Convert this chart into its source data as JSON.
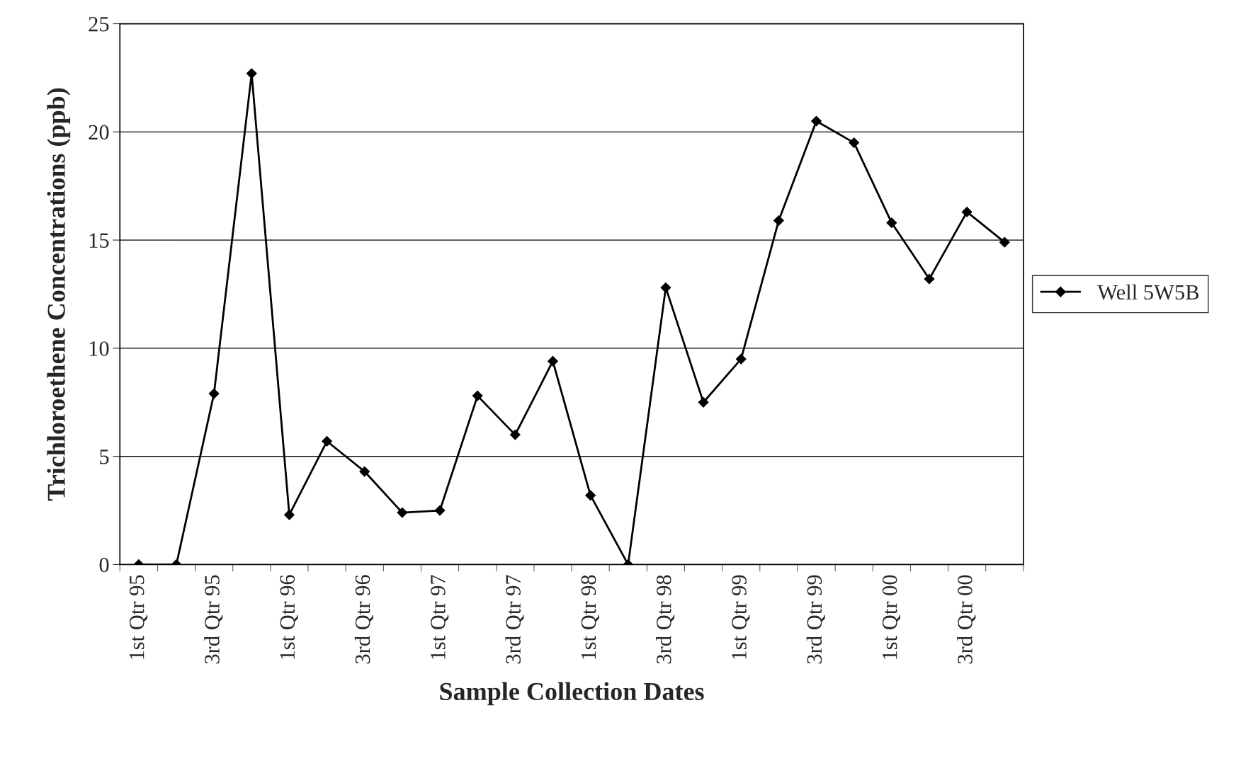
{
  "chart_data": {
    "type": "line",
    "xlabel": "Sample Collection Dates",
    "ylabel": "Trichloroethene Concentrations (ppb)",
    "categories": [
      "1st Qtr 95",
      null,
      "3rd Qtr 95",
      null,
      "1st Qtr 96",
      null,
      "3rd Qtr 96",
      null,
      "1st Qtr 97",
      null,
      "3rd Qtr 97",
      null,
      "1st Qtr 98",
      null,
      "3rd Qtr 98",
      null,
      "1st Qtr 99",
      null,
      "3rd Qtr 99",
      null,
      "1st Qtr 00",
      null,
      "3rd Qtr 00",
      null
    ],
    "series": [
      {
        "name": "Well 5W5B",
        "color": "#000000",
        "values": [
          0,
          0,
          7.9,
          22.7,
          2.3,
          5.7,
          4.3,
          2.4,
          2.5,
          7.8,
          6.0,
          9.4,
          3.2,
          0,
          12.8,
          7.5,
          9.5,
          15.9,
          20.5,
          19.5,
          15.8,
          13.2,
          16.3,
          14.9
        ]
      }
    ],
    "ylim": [
      0,
      25
    ],
    "yticks": [
      0,
      5,
      10,
      15,
      20,
      25
    ],
    "grid": "y",
    "legend": "right",
    "marker": "diamond",
    "line_style": "solid"
  }
}
